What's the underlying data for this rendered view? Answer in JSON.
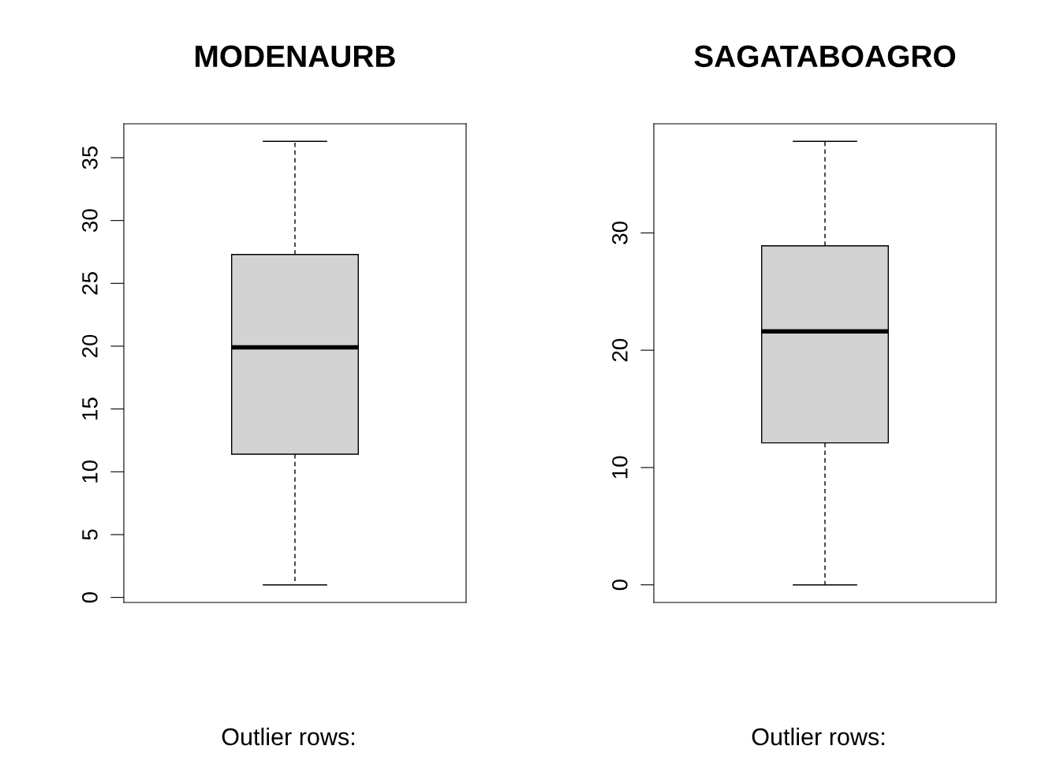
{
  "chart_data": [
    {
      "type": "box",
      "title": "MODENAURB",
      "categories": [
        null
      ],
      "series": [
        {
          "color": "#d3d3d3",
          "boxes": [
            {
              "low": 1.0,
              "q1": 11.4,
              "median": 19.9,
              "q3": 27.3,
              "high": 36.3
            }
          ]
        }
      ],
      "ylim": [
        -0.4,
        37.7
      ],
      "yticks": [
        0,
        5,
        10,
        15,
        20,
        25,
        30,
        35
      ],
      "tick_labels": "y",
      "annotations": [
        "Outlier rows:"
      ]
    },
    {
      "type": "box",
      "title": "SAGATABOAGRO",
      "categories": [
        null
      ],
      "series": [
        {
          "color": "#d3d3d3",
          "boxes": [
            {
              "low": 0,
              "q1": 12.1,
              "median": 21.6,
              "q3": 28.9,
              "high": 37.8
            }
          ]
        }
      ],
      "ylim": [
        -1.5,
        39.3
      ],
      "yticks": [
        0,
        10,
        20,
        30
      ],
      "tick_labels": "y",
      "annotations": [
        "Outlier rows:"
      ]
    }
  ]
}
